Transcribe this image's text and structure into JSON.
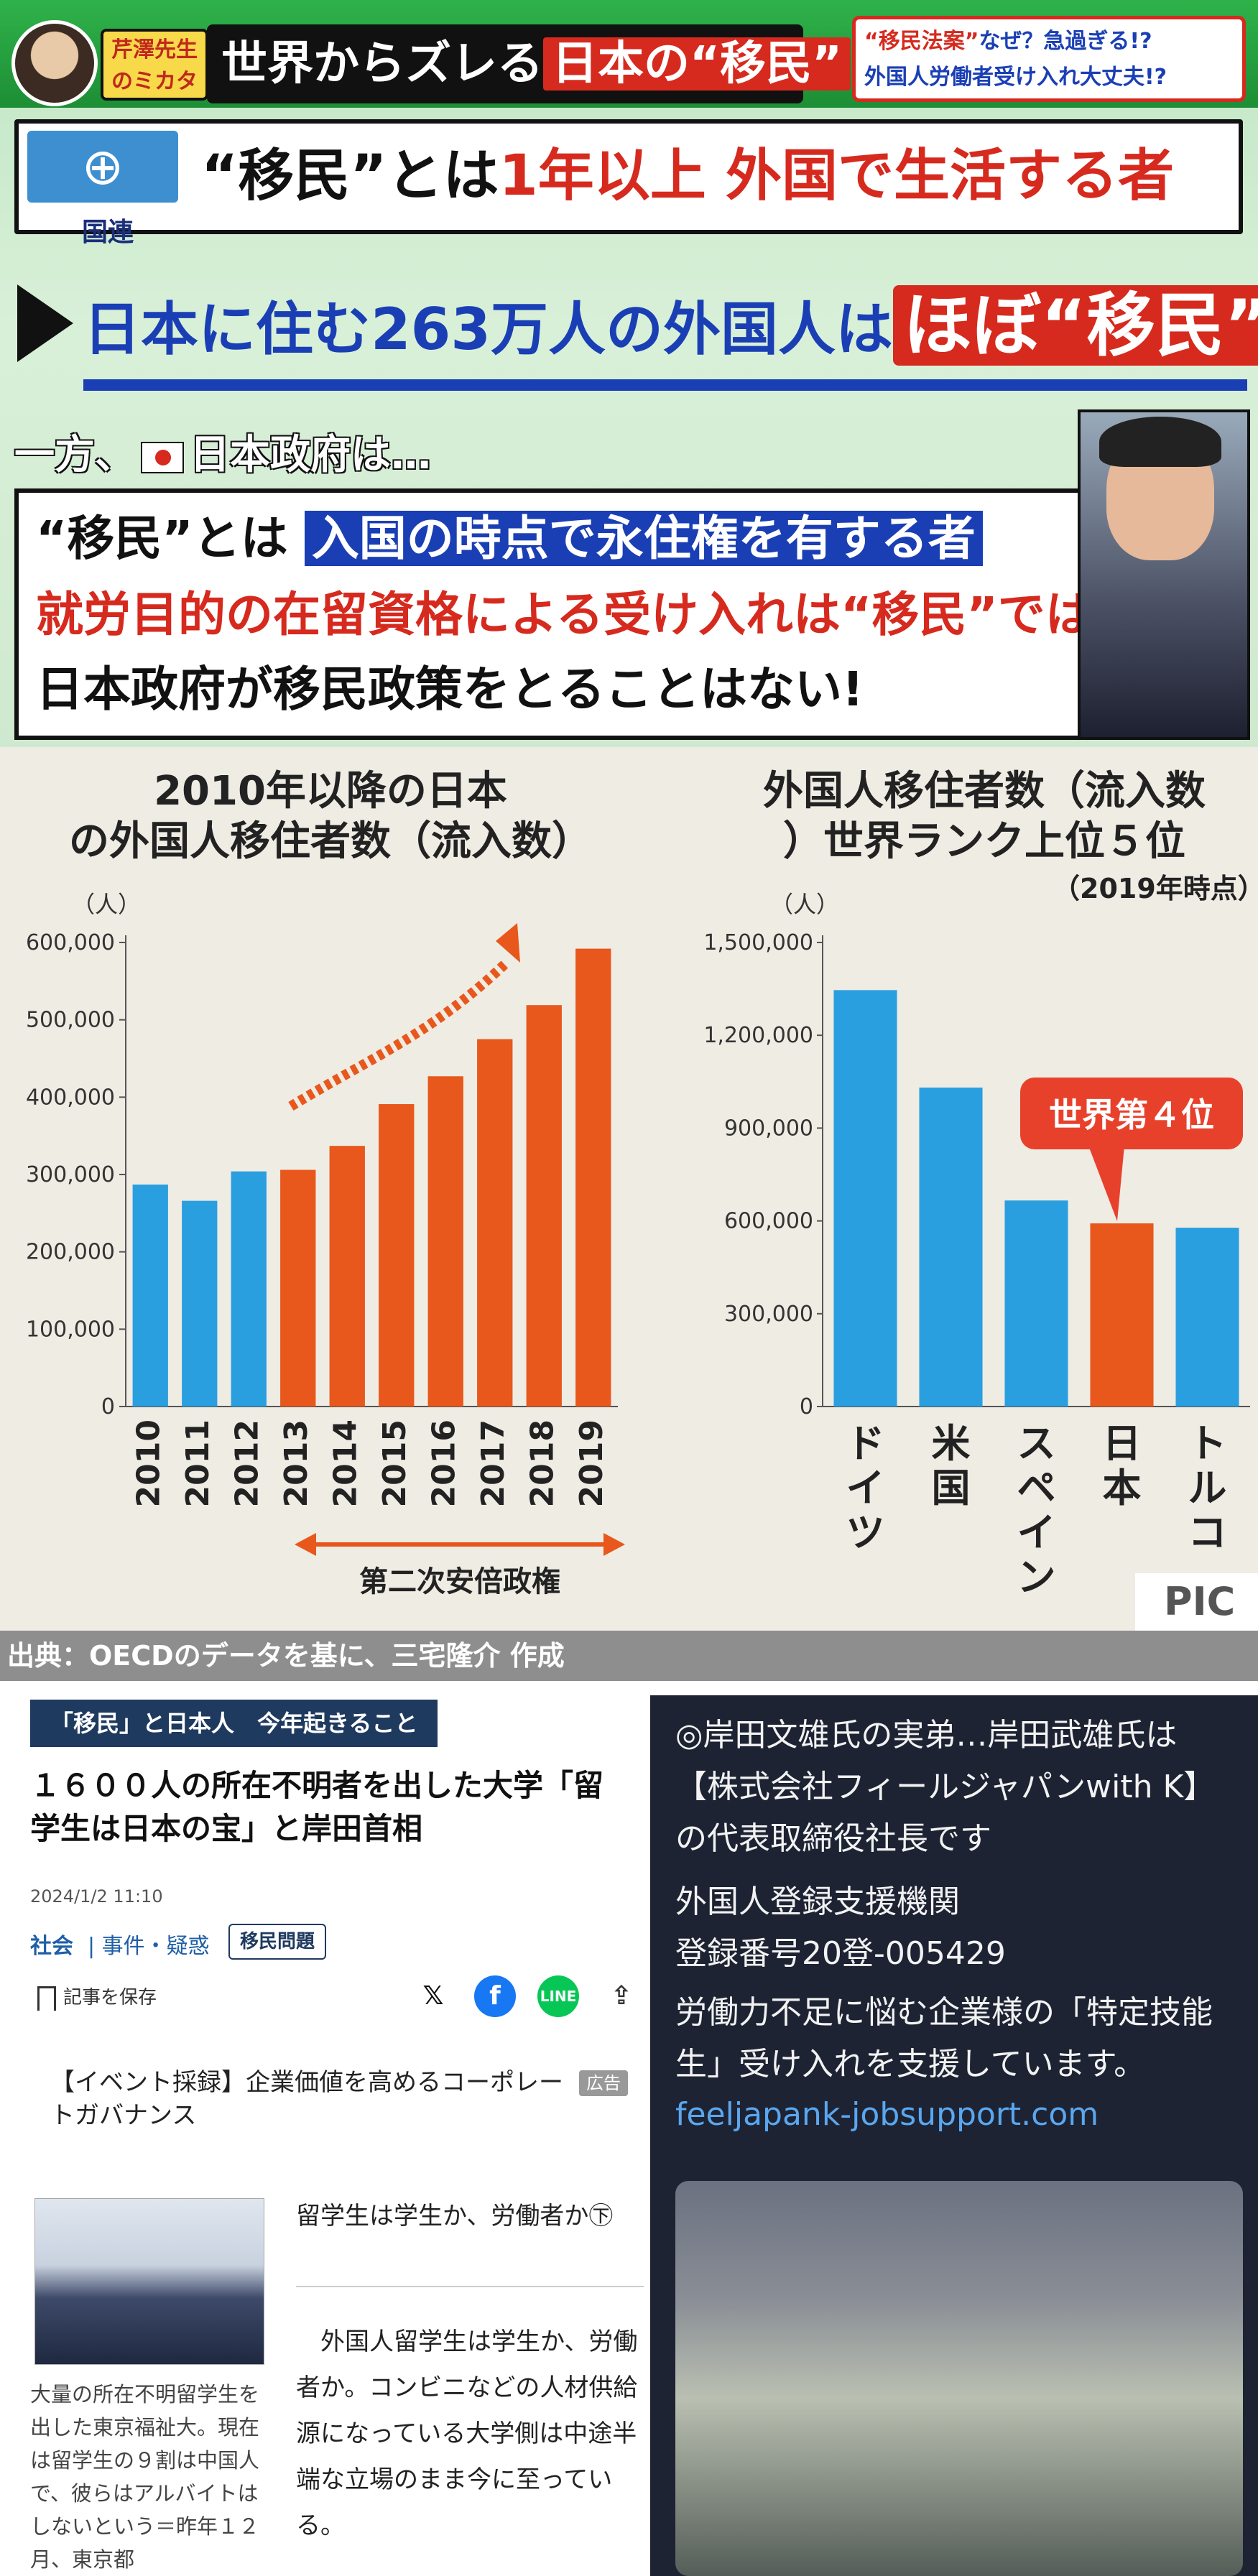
{
  "tv": {
    "host_label": "芹澤先生のミカタ",
    "banner_prefix": "世界からズレる",
    "banner_highlight": "日本の“移民”",
    "topright_line1_red": "“移民法案”",
    "topright_line1": "なぜ？急過ぎる!?",
    "topright_line2": "外国人労働者受け入れ大丈夫!?",
    "un_label": "国連",
    "row1_prefix": "“移民”とは",
    "row1_red": "1年以上 外国で生活する者",
    "row2_text": "日本に住む263万人の外国人は",
    "row2_red": "ほぼ“移民”!",
    "row3_before": "一方、",
    "row3_after": "日本政府は…",
    "line_a_prefix": "“移民”とは",
    "line_a_highlight": "入国の時点で永住権を有する者",
    "line_b": "就労目的の在留資格による受け入れは“移民”ではない!",
    "line_c": "日本政府が移民政策をとることはない!"
  },
  "chart_data": [
    {
      "type": "bar",
      "title": "2010年以降の日本の外国人移住者数（流入数）",
      "ylabel": "（人）",
      "categories": [
        "2010",
        "2011",
        "2012",
        "2013",
        "2014",
        "2015",
        "2016",
        "2017",
        "2018",
        "2019"
      ],
      "values": [
        287000,
        266000,
        304000,
        306000,
        337000,
        391000,
        427000,
        475000,
        519000,
        592000
      ],
      "colors": [
        "#2a9fe0",
        "#2a9fe0",
        "#2a9fe0",
        "#e8571b",
        "#e8571b",
        "#e8571b",
        "#e8571b",
        "#e8571b",
        "#e8571b",
        "#e8571b"
      ],
      "ylim": [
        0,
        600000
      ],
      "yticks": [
        "0",
        "100,000",
        "200,000",
        "300,000",
        "400,000",
        "500,000",
        "600,000"
      ],
      "annotation": "第二次安倍政権"
    },
    {
      "type": "bar",
      "title": "外国人移住者数（流入数）世界ランク上位５位",
      "subtitle": "（2019年時点）",
      "ylabel": "（人）",
      "categories": [
        "ドイツ",
        "米国",
        "スペイン",
        "日本",
        "トルコ"
      ],
      "values": [
        1346000,
        1031000,
        666000,
        592000,
        578000
      ],
      "colors": [
        "#2a9fe0",
        "#2a9fe0",
        "#2a9fe0",
        "#e8571b",
        "#2a9fe0"
      ],
      "ylim": [
        0,
        1500000
      ],
      "yticks": [
        "0",
        "300,000",
        "600,000",
        "900,000",
        "1,200,000",
        "1,500,000"
      ],
      "callout": "世界第４位"
    }
  ],
  "source": "出典：OECDのデータを基に、三宅隆介 作成",
  "watermark": "PIC",
  "article": {
    "tag": "「移民」と日本人　今年起きること",
    "headline": "１６００人の所在不明者を出した大学「留学生は日本の宝」と岸田首相",
    "date": "2024/1/2 11:10",
    "cat1": "社会",
    "cat2": "| 事件・疑惑",
    "pill": "移民問題",
    "save": "記事を保存",
    "ad_text": "【イベント採録】企業価値を高めるコーポレートガバナンス",
    "ad_badge": "広告",
    "photo_caption": "大量の所在不明留学生を出した東京福祉大。現在は留学生の９割は中国人で、彼らはアルバイトはしないという＝昨年１２月、東京都",
    "subhead": "留学生は学生か、労働者か㊦",
    "body": "　外国人留学生は学生か、労働者か。コンビニなどの人材供給源になっている大学側は中途半端な立場のまま今に至っている。"
  },
  "side_ad": {
    "line1": "◎岸田文雄氏の実弟…岸田武雄氏は【株式会社フィールジャパンwith K】の代表取締役社長です",
    "line2": "外国人登録支援機関",
    "line3": "登録番号20登-005429",
    "line4": "労働力不足に悩む企業様の「特定技能生」受け入れを支援しています。",
    "link": "feeljapank-jobsupport.com"
  }
}
